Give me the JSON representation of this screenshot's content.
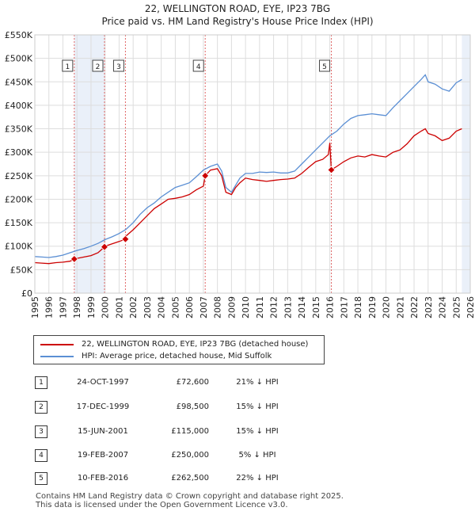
{
  "chart_data": {
    "type": "line",
    "title": "22, WELLINGTON ROAD, EYE, IP23 7BG",
    "subtitle": "Price paid vs. HM Land Registry's House Price Index (HPI)",
    "xlabel": "",
    "ylabel": "",
    "xlim": [
      1995,
      2026
    ],
    "ylim": [
      0,
      550000
    ],
    "y_ticks": [
      0,
      50000,
      100000,
      150000,
      200000,
      250000,
      300000,
      350000,
      400000,
      450000,
      500000,
      550000
    ],
    "y_tick_labels": [
      "£0",
      "£50K",
      "£100K",
      "£150K",
      "£200K",
      "£250K",
      "£300K",
      "£350K",
      "£400K",
      "£450K",
      "£500K",
      "£550K"
    ],
    "x_ticks": [
      1995,
      1996,
      1997,
      1998,
      1999,
      2000,
      2001,
      2002,
      2003,
      2004,
      2005,
      2006,
      2007,
      2008,
      2009,
      2010,
      2011,
      2012,
      2013,
      2014,
      2015,
      2016,
      2017,
      2018,
      2019,
      2020,
      2021,
      2022,
      2023,
      2024,
      2025,
      2026
    ],
    "x_tick_labels": [
      "1995",
      "1996",
      "1997",
      "1998",
      "1999",
      "2000",
      "2001",
      "2002",
      "2003",
      "2004",
      "2005",
      "2006",
      "2007",
      "2008",
      "2009",
      "2010",
      "2011",
      "2012",
      "2013",
      "2014",
      "2015",
      "2016",
      "2017",
      "2018",
      "2019",
      "2020",
      "2021",
      "2022",
      "2023",
      "2024",
      "2025",
      "2026"
    ],
    "grid": true,
    "series": [
      {
        "name": "22, WELLINGTON ROAD, EYE, IP23 7BG (detached house)",
        "color": "#cc0000",
        "x": [
          1995.0,
          1995.5,
          1996.0,
          1996.5,
          1997.0,
          1997.5,
          1997.81,
          1998.0,
          1998.5,
          1999.0,
          1999.5,
          1999.96,
          2000.0,
          2000.5,
          2001.0,
          2001.45,
          2001.5,
          2002.0,
          2002.5,
          2003.0,
          2003.5,
          2004.0,
          2004.5,
          2005.0,
          2005.5,
          2006.0,
          2006.5,
          2007.0,
          2007.13,
          2007.5,
          2008.0,
          2008.3,
          2008.6,
          2009.0,
          2009.3,
          2009.6,
          2010.0,
          2010.5,
          2011.0,
          2011.5,
          2012.0,
          2012.5,
          2013.0,
          2013.5,
          2014.0,
          2014.5,
          2015.0,
          2015.5,
          2015.9,
          2016.0,
          2016.11,
          2016.5,
          2017.0,
          2017.5,
          2018.0,
          2018.5,
          2019.0,
          2019.5,
          2020.0,
          2020.5,
          2021.0,
          2021.5,
          2022.0,
          2022.5,
          2022.8,
          2023.0,
          2023.5,
          2024.0,
          2024.5,
          2025.0,
          2025.4
        ],
        "values": [
          65000,
          64000,
          63000,
          65000,
          66000,
          68000,
          72600,
          74000,
          77000,
          80000,
          86000,
          98500,
          100000,
          105000,
          110000,
          115000,
          122000,
          135000,
          150000,
          165000,
          180000,
          190000,
          200000,
          202000,
          205000,
          210000,
          220000,
          228000,
          250000,
          262000,
          265000,
          250000,
          215000,
          210000,
          225000,
          235000,
          245000,
          242000,
          240000,
          238000,
          240000,
          242000,
          243000,
          245000,
          255000,
          268000,
          280000,
          285000,
          295000,
          320000,
          262500,
          270000,
          280000,
          288000,
          292000,
          290000,
          295000,
          292000,
          290000,
          300000,
          305000,
          318000,
          335000,
          345000,
          350000,
          340000,
          335000,
          325000,
          330000,
          345000,
          350000
        ]
      },
      {
        "name": "HPI: Average price, detached house, Mid Suffolk",
        "color": "#5b8fd4",
        "x": [
          1995.0,
          1995.5,
          1996.0,
          1996.5,
          1997.0,
          1997.5,
          1998.0,
          1998.5,
          1999.0,
          1999.5,
          2000.0,
          2000.5,
          2001.0,
          2001.5,
          2002.0,
          2002.5,
          2003.0,
          2003.5,
          2004.0,
          2004.5,
          2005.0,
          2005.5,
          2006.0,
          2006.5,
          2007.0,
          2007.5,
          2008.0,
          2008.3,
          2008.6,
          2009.0,
          2009.3,
          2009.6,
          2010.0,
          2010.5,
          2011.0,
          2011.5,
          2012.0,
          2012.5,
          2013.0,
          2013.5,
          2014.0,
          2014.5,
          2015.0,
          2015.5,
          2016.0,
          2016.5,
          2017.0,
          2017.5,
          2018.0,
          2018.5,
          2019.0,
          2019.5,
          2020.0,
          2020.5,
          2021.0,
          2021.5,
          2022.0,
          2022.5,
          2022.8,
          2023.0,
          2023.5,
          2024.0,
          2024.5,
          2025.0,
          2025.4
        ],
        "values": [
          78000,
          77000,
          76000,
          78000,
          81000,
          86000,
          91000,
          95000,
          100000,
          106000,
          114000,
          120000,
          127000,
          136000,
          150000,
          168000,
          182000,
          192000,
          205000,
          215000,
          225000,
          230000,
          235000,
          248000,
          262000,
          270000,
          275000,
          260000,
          225000,
          215000,
          230000,
          245000,
          255000,
          255000,
          258000,
          257000,
          258000,
          256000,
          256000,
          260000,
          275000,
          290000,
          305000,
          320000,
          335000,
          345000,
          360000,
          372000,
          378000,
          380000,
          382000,
          380000,
          378000,
          395000,
          410000,
          425000,
          440000,
          455000,
          465000,
          450000,
          445000,
          435000,
          430000,
          448000,
          455000
        ]
      }
    ],
    "transactions": [
      {
        "label": "1",
        "x": 1997.81,
        "value": 72600
      },
      {
        "label": "2",
        "x": 1999.96,
        "value": 98500
      },
      {
        "label": "3",
        "x": 2001.45,
        "value": 115000
      },
      {
        "label": "4",
        "x": 2007.13,
        "value": 250000
      },
      {
        "label": "5",
        "x": 2016.11,
        "value": 262500
      }
    ],
    "shaded_spans": [
      [
        1997.81,
        1999.96
      ],
      [
        2025.4,
        2026
      ]
    ],
    "marker_color": "#cc0000"
  },
  "legend": {
    "property_label": "22, WELLINGTON ROAD, EYE, IP23 7BG (detached house)",
    "hpi_label": "HPI: Average price, detached house, Mid Suffolk"
  },
  "table": [
    {
      "num": "1",
      "date": "24-OCT-1997",
      "price": "£72,600",
      "pct": "21% ↓ HPI"
    },
    {
      "num": "2",
      "date": "17-DEC-1999",
      "price": "£98,500",
      "pct": "15% ↓ HPI"
    },
    {
      "num": "3",
      "date": "15-JUN-2001",
      "price": "£115,000",
      "pct": "15% ↓ HPI"
    },
    {
      "num": "4",
      "date": "19-FEB-2007",
      "price": "£250,000",
      "pct": "5% ↓ HPI"
    },
    {
      "num": "5",
      "date": "10-FEB-2016",
      "price": "£262,500",
      "pct": "22% ↓ HPI"
    }
  ],
  "footer": {
    "line1": "Contains HM Land Registry data © Crown copyright and database right 2025.",
    "line2": "This data is licensed under the Open Government Licence v3.0."
  }
}
